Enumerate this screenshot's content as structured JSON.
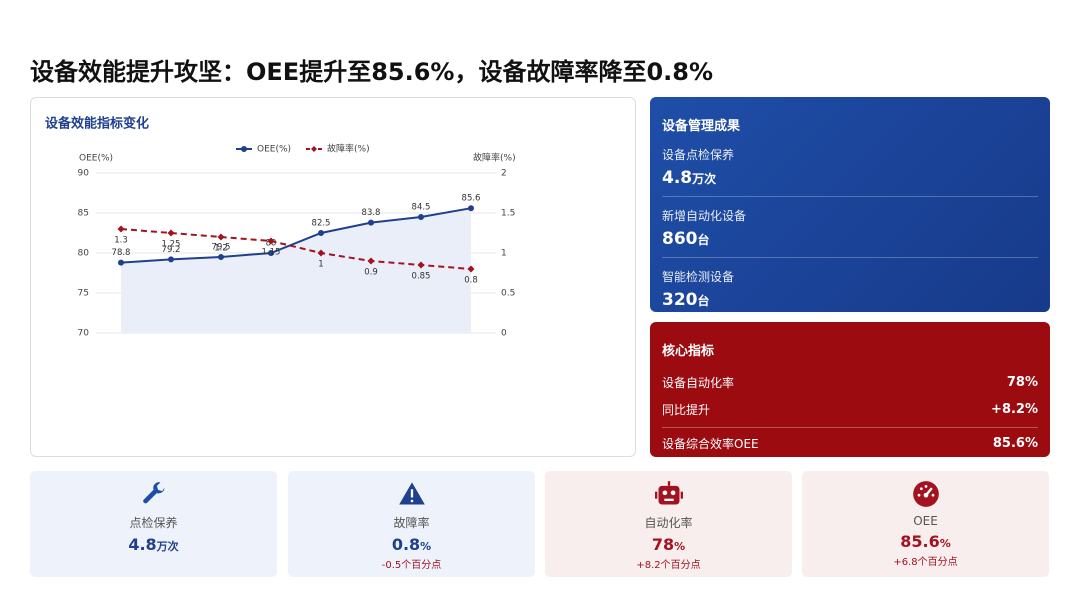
{
  "header": {
    "title": "设备效能提升攻坚：OEE提升至85.6%，设备故障率降至0.8%"
  },
  "chart_data": {
    "type": "line",
    "title": "设备效能指标变化",
    "categories": [
      null,
      null,
      null,
      null,
      null,
      null,
      null,
      null
    ],
    "ylabel": "OEE(%)",
    "y2label": "故障率(%)",
    "ylim": [
      70,
      90
    ],
    "yticks": [
      70,
      75,
      80,
      85,
      90
    ],
    "y2lim": [
      0,
      2
    ],
    "y2ticks": [
      0,
      0.5,
      1,
      1.5,
      2
    ],
    "grid": true,
    "legend": "top",
    "series": [
      {
        "name": "OEE(%)",
        "color": "#1f3f8f",
        "marker": "circle",
        "line_style": "solid",
        "area": true,
        "area_color": "#e9eef9",
        "values": [
          78.8,
          79.2,
          79.5,
          80,
          82.5,
          83.8,
          84.5,
          85.6
        ]
      },
      {
        "name": "故障率(%)",
        "color": "#a3121f",
        "marker": "diamond",
        "line_style": "dashed",
        "axis": "y2",
        "values": [
          1.3,
          1.25,
          1.2,
          1.15,
          1,
          0.9,
          0.85,
          0.8
        ]
      }
    ]
  },
  "management": {
    "title": "设备管理成果",
    "items": [
      {
        "label": "设备点检保养",
        "value": "4.8",
        "unit": "万次"
      },
      {
        "label": "新增自动化设备",
        "value": "860",
        "unit": "台"
      },
      {
        "label": "智能检测设备",
        "value": "320",
        "unit": "台"
      }
    ]
  },
  "core": {
    "title": "核心指标",
    "rows": [
      {
        "label": "设备自动化率",
        "value": "78%"
      },
      {
        "label": "同比提升",
        "value": "+8.2%"
      },
      {
        "label": "设备综合效率OEE",
        "value": "85.6%"
      }
    ]
  },
  "kpis": [
    {
      "label": "点检保养",
      "value": "4.8",
      "unit": "万次"
    },
    {
      "label": "故障率",
      "value": "0.8",
      "unit": "%",
      "change": "-0.5个百分点"
    },
    {
      "label": "自动化率",
      "value": "78",
      "unit": "%",
      "change": "+8.2个百分点"
    },
    {
      "label": "OEE",
      "value": "85.6",
      "unit": "%",
      "change": "+6.8个百分点"
    }
  ]
}
